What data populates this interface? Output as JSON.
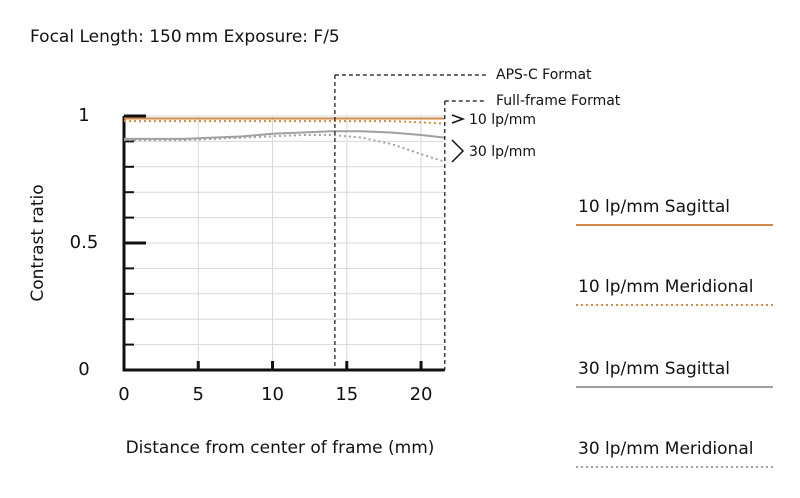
{
  "chart_data": {
    "type": "line",
    "title": "Focal Length: 150 mm  Exposure: F/5",
    "x_label": "Distance from center of frame (mm)",
    "y_label": "Contrast ratio",
    "x": [
      0,
      2,
      4,
      6,
      8,
      10,
      12,
      14,
      16,
      18,
      20,
      21.6
    ],
    "series": [
      {
        "name": "10 lp/mm Sagittal",
        "color": "#d08a4a",
        "dash": "solid",
        "values": [
          0.99,
          0.99,
          0.99,
          0.99,
          0.99,
          0.99,
          0.99,
          0.99,
          0.99,
          0.99,
          0.99,
          0.99
        ]
      },
      {
        "name": "10 lp/mm Meridional",
        "color": "#d08a4a",
        "dash": "dotted",
        "values": [
          0.98,
          0.98,
          0.98,
          0.98,
          0.98,
          0.98,
          0.98,
          0.98,
          0.98,
          0.98,
          0.975,
          0.97
        ]
      },
      {
        "name": "30 lp/mm Sagittal",
        "color": "#a0a0a0",
        "dash": "solid",
        "values": [
          0.91,
          0.91,
          0.91,
          0.915,
          0.92,
          0.93,
          0.935,
          0.94,
          0.94,
          0.935,
          0.925,
          0.915
        ]
      },
      {
        "name": "30 lp/mm Meridional",
        "color": "#a0a0a0",
        "dash": "dotted",
        "values": [
          0.905,
          0.905,
          0.905,
          0.91,
          0.915,
          0.92,
          0.925,
          0.925,
          0.915,
          0.89,
          0.85,
          0.82
        ]
      }
    ],
    "xlim": [
      0,
      21.6
    ],
    "ylim": [
      0,
      1
    ],
    "xticks": [
      0,
      5,
      10,
      15,
      20
    ],
    "yticks": [
      0,
      0.5,
      1
    ],
    "yminor_ticks": [
      0.1,
      0.2,
      0.3,
      0.4,
      0.6,
      0.7,
      0.8,
      0.9
    ],
    "grid": true,
    "format_markers": [
      {
        "label": "APS-C Format",
        "x": 14.2
      },
      {
        "label": "Full-frame Format",
        "x": 21.6
      }
    ],
    "group_labels": [
      "10 lp/mm",
      "30 lp/mm"
    ]
  }
}
